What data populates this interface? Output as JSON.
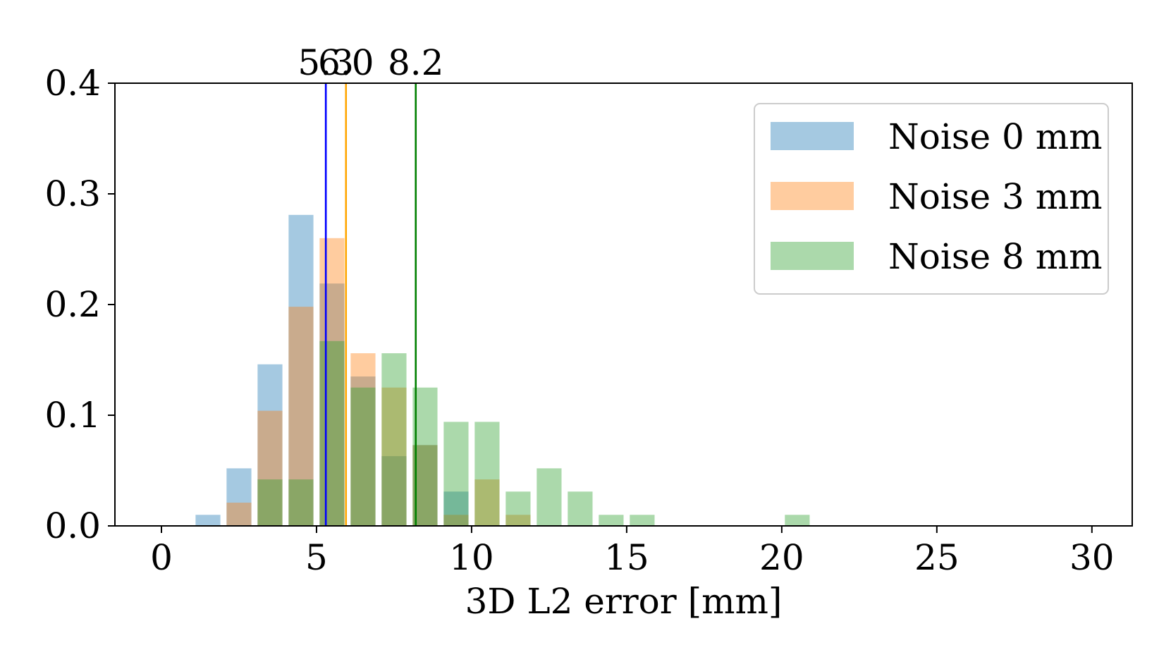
{
  "chart_data": {
    "type": "bar",
    "title": "",
    "xlabel": "3D L2 error [mm]",
    "ylabel": "",
    "xlim": [
      -1.5,
      31.3
    ],
    "ylim": [
      0.0,
      0.4
    ],
    "xticks": [
      "0",
      "5",
      "10",
      "15",
      "20",
      "25",
      "30"
    ],
    "yticks": [
      "0.0",
      "0.1",
      "0.2",
      "0.3",
      "0.4"
    ],
    "grid": false,
    "legend_position": "top-right",
    "bin_width": 1,
    "series": [
      {
        "name": "Noise 0 mm",
        "color": "#1f77b4",
        "bins": [
          {
            "start": 1,
            "value": 0.01
          },
          {
            "start": 2,
            "value": 0.052
          },
          {
            "start": 3,
            "value": 0.146
          },
          {
            "start": 4,
            "value": 0.281
          },
          {
            "start": 5,
            "value": 0.219
          },
          {
            "start": 6,
            "value": 0.135
          },
          {
            "start": 7,
            "value": 0.063
          },
          {
            "start": 8,
            "value": 0.073
          },
          {
            "start": 9,
            "value": 0.031
          }
        ]
      },
      {
        "name": "Noise 3 mm",
        "color": "#ff7f0e",
        "bins": [
          {
            "start": 2,
            "value": 0.021
          },
          {
            "start": 3,
            "value": 0.104
          },
          {
            "start": 4,
            "value": 0.198
          },
          {
            "start": 5,
            "value": 0.26
          },
          {
            "start": 6,
            "value": 0.156
          },
          {
            "start": 7,
            "value": 0.125
          },
          {
            "start": 8,
            "value": 0.073
          },
          {
            "start": 9,
            "value": 0.01
          },
          {
            "start": 10,
            "value": 0.042
          },
          {
            "start": 11,
            "value": 0.01
          }
        ]
      },
      {
        "name": "Noise 8 mm",
        "color": "#2ca02c",
        "bins": [
          {
            "start": 3,
            "value": 0.042
          },
          {
            "start": 4,
            "value": 0.042
          },
          {
            "start": 5,
            "value": 0.167
          },
          {
            "start": 6,
            "value": 0.125
          },
          {
            "start": 7,
            "value": 0.156
          },
          {
            "start": 8,
            "value": 0.125
          },
          {
            "start": 9,
            "value": 0.094
          },
          {
            "start": 10,
            "value": 0.094
          },
          {
            "start": 11,
            "value": 0.031
          },
          {
            "start": 12,
            "value": 0.052
          },
          {
            "start": 13,
            "value": 0.031
          },
          {
            "start": 14,
            "value": 0.01
          },
          {
            "start": 15,
            "value": 0.01
          },
          {
            "start": 20,
            "value": 0.01
          }
        ]
      }
    ],
    "mean_lines": [
      {
        "x": 5.3,
        "label": "5.3",
        "color": "#0000ff"
      },
      {
        "x": 5.95,
        "label": "6.0",
        "color": "#ffa500"
      },
      {
        "x": 8.2,
        "label": "8.2",
        "color": "#008000"
      }
    ]
  }
}
